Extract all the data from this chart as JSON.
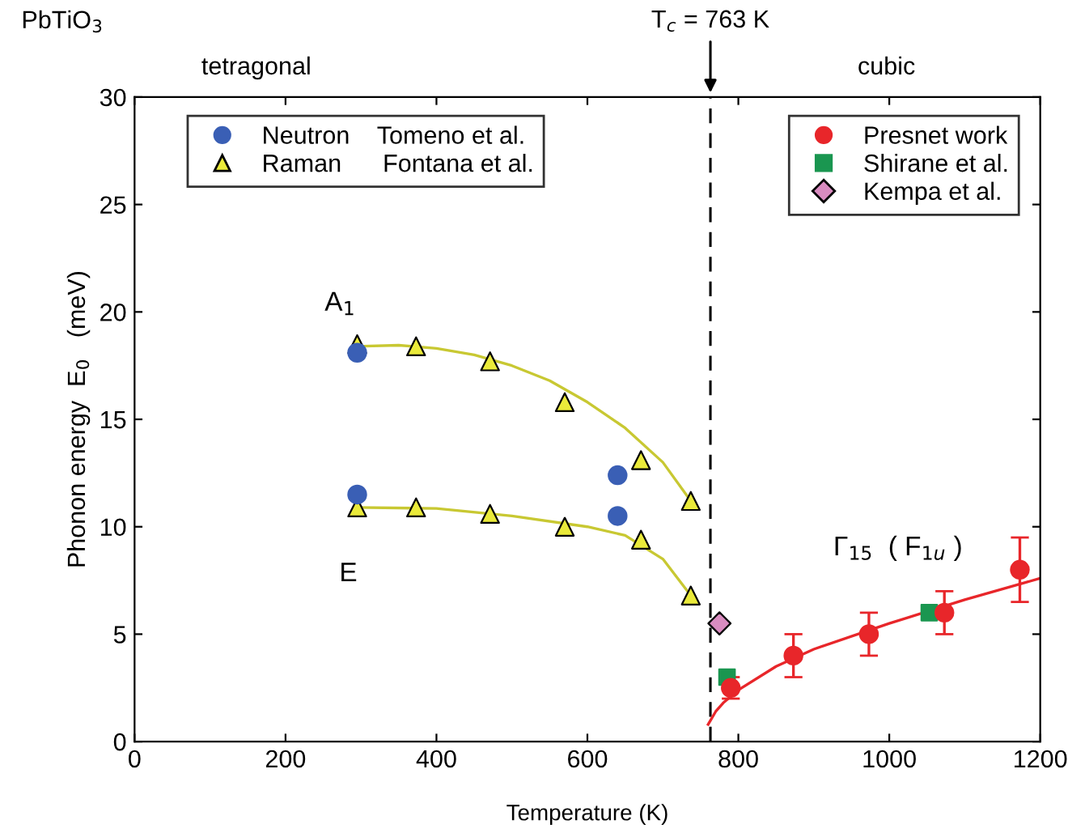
{
  "chart_data": {
    "type": "scatter",
    "xlabel": "Temperature (K)",
    "ylabel": "Phonon energy  E$_{0}$   (meV)",
    "xlim": [
      0,
      1200
    ],
    "ylim": [
      0,
      30
    ],
    "xticks": [
      0,
      200,
      400,
      600,
      800,
      1000,
      1200
    ],
    "yticks": [
      0,
      5,
      10,
      15,
      20,
      25,
      30
    ],
    "grid": false,
    "legend": "top",
    "ref_lines": [
      {
        "axis": "x",
        "value": 763,
        "label": "T$_{c}$ = 763 K",
        "line_style": "dashed",
        "color": "#000000"
      }
    ],
    "annotations": [
      "PbTiO$_{3}$",
      "tetragonal",
      "cubic",
      "A$_{1}$",
      "E",
      "Γ$_{15}$  ( F$_{1u}$ )"
    ],
    "series": [
      {
        "name": "Neutron    Tomeno et al.",
        "marker": "circle",
        "color": "#3a5fb5",
        "x": [
          295,
          295,
          640,
          640
        ],
        "values": [
          18.1,
          11.5,
          12.4,
          10.5
        ]
      },
      {
        "name": "Raman      Fontana et al.",
        "marker": "triangle",
        "color": "#eaea3a",
        "x": [
          295,
          373,
          471,
          570,
          671,
          737,
          295,
          373,
          471,
          570,
          671,
          737
        ],
        "values": [
          18.5,
          18.4,
          17.7,
          15.8,
          13.1,
          11.2,
          10.9,
          10.9,
          10.6,
          10.0,
          9.4,
          6.8
        ]
      },
      {
        "type": "line",
        "color": "#c8c832",
        "marker": "none",
        "x": [
          295,
          350,
          400,
          450,
          500,
          550,
          600,
          650,
          700,
          737
        ],
        "values": [
          18.4,
          18.45,
          18.3,
          18.0,
          17.5,
          16.8,
          15.8,
          14.6,
          13.0,
          11.2
        ]
      },
      {
        "type": "line",
        "color": "#c8c832",
        "marker": "none",
        "x": [
          295,
          400,
          500,
          600,
          650,
          700,
          737
        ],
        "values": [
          10.9,
          10.85,
          10.5,
          10.0,
          9.6,
          8.5,
          6.8
        ]
      },
      {
        "name": "Presnet work",
        "marker": "circle",
        "color": "#e8262a",
        "x": [
          790,
          873,
          973,
          1073,
          1173
        ],
        "values": [
          2.5,
          4.0,
          5.0,
          6.0,
          8.0
        ],
        "errors": [
          0.5,
          1.0,
          1.0,
          1.0,
          1.5
        ]
      },
      {
        "name": "Shirane et al.",
        "marker": "square",
        "color": "#1a9650",
        "x": [
          785,
          1053
        ],
        "values": [
          3.0,
          6.0
        ]
      },
      {
        "name": "Kempa et al.",
        "marker": "diamond",
        "color": "#d98cc0",
        "x": [
          775
        ],
        "values": [
          5.5
        ]
      },
      {
        "type": "line",
        "color": "#e8262a",
        "marker": "none",
        "x": [
          760,
          770,
          780,
          800,
          850,
          900,
          1000,
          1100,
          1200
        ],
        "values": [
          0.8,
          1.4,
          1.8,
          2.4,
          3.5,
          4.3,
          5.5,
          6.6,
          7.6
        ]
      }
    ]
  }
}
